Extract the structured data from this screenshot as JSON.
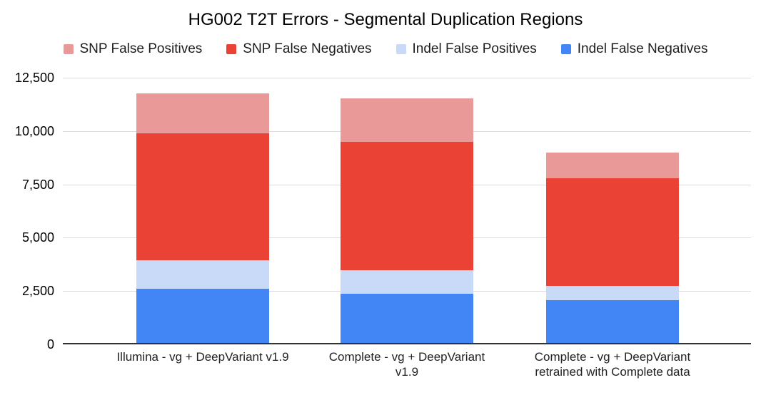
{
  "chart_data": {
    "type": "bar",
    "stacked": true,
    "title": "HG002 T2T Errors - Segmental Duplication Regions",
    "categories": [
      "Illumina - vg + DeepVariant v1.9",
      "Complete - vg + DeepVariant v1.9",
      "Complete - vg + DeepVariant retrained with Complete data"
    ],
    "category_label_lines": [
      [
        "Illumina - vg + DeepVariant v1.9"
      ],
      [
        "Complete - vg + DeepVariant",
        "v1.9"
      ],
      [
        "Complete - vg + DeepVariant",
        "retrained with Complete data"
      ]
    ],
    "series": [
      {
        "name": "SNP False Positives",
        "color": "#ea9999",
        "values": [
          1860,
          2040,
          1200
        ]
      },
      {
        "name": "SNP False Negatives",
        "color": "#ea4335",
        "values": [
          5960,
          6020,
          5060
        ]
      },
      {
        "name": "Indel False Positives",
        "color": "#c9daf8",
        "values": [
          1310,
          1120,
          670
        ]
      },
      {
        "name": "Indel False Negatives",
        "color": "#4285f4",
        "values": [
          2620,
          2360,
          2060
        ]
      }
    ],
    "stack_order_bottom_to_top": [
      "Indel False Negatives",
      "Indel False Positives",
      "SNP False Negatives",
      "SNP False Positives"
    ],
    "xlabel": "",
    "ylabel": "",
    "ylim": [
      0,
      12500
    ],
    "yticks": [
      0,
      2500,
      5000,
      7500,
      10000,
      12500
    ],
    "ytick_labels": [
      "0",
      "2,500",
      "5,000",
      "7,500",
      "10,000",
      "12,500"
    ],
    "grid": true,
    "legend_position": "top"
  }
}
